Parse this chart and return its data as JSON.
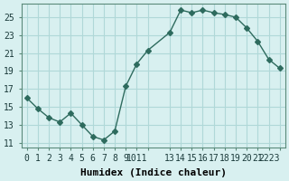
{
  "x": [
    0,
    1,
    2,
    3,
    4,
    5,
    6,
    7,
    8,
    9,
    10,
    11,
    13,
    14,
    15,
    16,
    17,
    18,
    19,
    20,
    21,
    22,
    23
  ],
  "y": [
    16.0,
    14.8,
    13.8,
    13.3,
    14.3,
    13.0,
    11.7,
    11.3,
    12.3,
    17.3,
    19.8,
    21.3,
    23.3,
    25.8,
    25.5,
    25.8,
    25.5,
    25.3,
    25.0,
    23.8,
    22.3,
    20.3,
    19.3
  ],
  "xlabel": "Humidex (Indice chaleur)",
  "xticks": [
    0,
    1,
    2,
    3,
    4,
    5,
    6,
    7,
    8,
    9,
    10,
    11,
    13,
    14,
    15,
    16,
    17,
    18,
    19,
    20,
    21,
    22,
    23
  ],
  "xtick_labels": [
    "0",
    "1",
    "2",
    "3",
    "4",
    "5",
    "6",
    "7",
    "8",
    "9",
    "1011",
    "",
    "13",
    "14",
    "15",
    "16",
    "17",
    "18",
    "19",
    "20",
    "21",
    "2223",
    ""
  ],
  "yticks": [
    11,
    13,
    15,
    17,
    19,
    21,
    23,
    25
  ],
  "ylim": [
    10.5,
    26.5
  ],
  "xlim": [
    -0.5,
    23.5
  ],
  "line_color": "#2e6b5e",
  "marker": "D",
  "marker_size": 3,
  "bg_color": "#d8f0f0",
  "grid_color": "#b0d8d8",
  "tick_fontsize": 7,
  "xlabel_fontsize": 8
}
